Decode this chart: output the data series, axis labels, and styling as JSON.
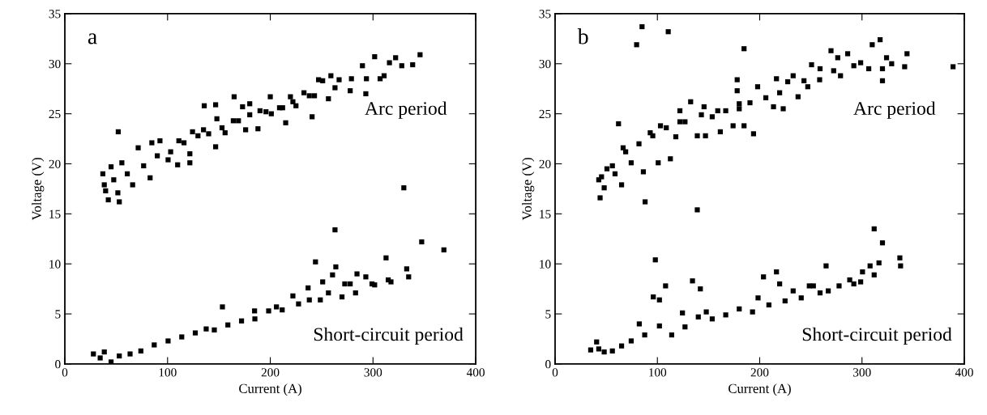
{
  "chart_data": [
    {
      "type": "scatter",
      "xlabel": "Current (A)",
      "ylabel": "Voltage (V)",
      "xlim": [
        0,
        400
      ],
      "ylim": [
        0,
        35
      ],
      "xticks": [
        0,
        100,
        200,
        300,
        400
      ],
      "yticks": [
        0,
        5,
        10,
        15,
        20,
        25,
        30,
        35
      ],
      "grid": false,
      "legend": false,
      "marker": "square",
      "annotations": [
        "a",
        "Arc period",
        "Short-circuit period"
      ],
      "series": [
        {
          "color": "#000000",
          "x": [
            37,
            39.7,
            42.3,
            53,
            52,
            45,
            55.5,
            66,
            71.4,
            83,
            84.7,
            92.6,
            100.5,
            109.8,
            111,
            121.7,
            121.7,
            124.3,
            135,
            135.7,
            146.8,
            146.8,
            148,
            156,
            164.8,
            169,
            173,
            176,
            180,
            188,
            190,
            200,
            201,
            212,
            215,
            219.6,
            225,
            232.8,
            240.7,
            243,
            247,
            256.6,
            259,
            263,
            267,
            277.8,
            279,
            289.7,
            293,
            293.6,
            301.6,
            306.9,
            310.8,
            316,
            322,
            328,
            338.6,
            345.8,
            38.4,
            47.6,
            60.8,
            76.7,
            90,
            103,
            116,
            129.6,
            140,
            153,
            164,
            180,
            195.8,
            209,
            222,
            238,
            251,
            51.6
          ],
          "values": [
            19.0,
            17.3,
            16.4,
            16.2,
            23.2,
            19.7,
            20.1,
            17.9,
            21.6,
            18.6,
            22.1,
            22.3,
            20.4,
            19.9,
            22.3,
            20.1,
            21.0,
            23.2,
            23.4,
            25.8,
            25.9,
            21.7,
            24.5,
            23.1,
            26.7,
            24.3,
            25.7,
            23.4,
            26.0,
            23.5,
            25.3,
            26.7,
            25.0,
            25.6,
            24.1,
            26.7,
            25.8,
            27.1,
            24.7,
            26.8,
            28.4,
            26.5,
            28.8,
            27.6,
            28.4,
            27.3,
            28.5,
            29.8,
            27.0,
            28.5,
            30.7,
            28.5,
            28.8,
            30.1,
            30.6,
            29.8,
            29.9,
            30.9,
            17.9,
            18.4,
            19.0,
            19.8,
            20.8,
            21.2,
            22.1,
            22.8,
            23.0,
            23.6,
            24.3,
            24.9,
            25.2,
            25.6,
            26.2,
            26.8,
            28.3,
            17.1
          ]
        },
        {
          "color": "#000000",
          "x": [
            27.8,
            34.4,
            38.4,
            45,
            53,
            63.5,
            74,
            87,
            100.5,
            113.8,
            127,
            137.6,
            145.5,
            153.4,
            158.7,
            172,
            184.7,
            185,
            198.4,
            206,
            211.6,
            222,
            227.5,
            236.8,
            238,
            244,
            248.7,
            251,
            256.6,
            260.6,
            263,
            263.8,
            269.8,
            272.5,
            277.8,
            283,
            284.4,
            293,
            299,
            301.6,
            312.7,
            314.8,
            317.5,
            330,
            332.8,
            334.7,
            347.4,
            369
          ],
          "values": [
            1.0,
            0.6,
            1.2,
            0.2,
            0.8,
            1.0,
            1.3,
            1.9,
            2.3,
            2.7,
            3.1,
            3.5,
            3.4,
            5.7,
            3.9,
            4.3,
            5.3,
            4.5,
            5.3,
            5.7,
            5.4,
            6.8,
            6.0,
            7.6,
            6.4,
            10.2,
            6.4,
            8.2,
            7.1,
            8.9,
            13.4,
            9.7,
            6.7,
            8.0,
            8.0,
            7.1,
            9.0,
            8.7,
            8.0,
            7.9,
            10.6,
            8.4,
            8.2,
            17.6,
            9.5,
            8.7,
            12.2,
            11.4
          ]
        }
      ]
    },
    {
      "type": "scatter",
      "xlabel": "Current (A)",
      "ylabel": "Voltage (V)",
      "xlim": [
        0,
        400
      ],
      "ylim": [
        0,
        35
      ],
      "xticks": [
        0,
        100,
        200,
        300,
        400
      ],
      "yticks": [
        0,
        5,
        10,
        15,
        20,
        25,
        30,
        35
      ],
      "grid": false,
      "legend": false,
      "marker": "square",
      "annotations": [
        "b",
        "Arc period",
        "Short-circuit period"
      ],
      "series": [
        {
          "color": "#000000",
          "x": [
            42.7,
            44,
            48,
            50.7,
            62,
            58.6,
            65,
            66.5,
            74.4,
            79.7,
            85,
            88,
            86.3,
            93,
            100.8,
            103,
            110.6,
            112.7,
            118,
            122,
            127,
            132.5,
            139,
            139,
            145.6,
            147,
            153.6,
            161.5,
            166.8,
            174,
            178,
            178,
            180,
            184.7,
            184.7,
            190.5,
            194,
            198,
            206,
            213.5,
            216.4,
            219.5,
            223,
            227.4,
            232.7,
            237.5,
            243.3,
            247,
            250.7,
            258.6,
            259,
            269.7,
            272.3,
            276.3,
            279,
            286,
            292,
            298.7,
            306.6,
            310,
            317.7,
            320,
            320,
            324,
            329,
            341.7,
            344,
            389,
            45.4,
            56,
            69,
            82,
            95.5,
            108.7,
            122,
            143,
            159,
            180
          ],
          "values": [
            18.4,
            16.6,
            17.6,
            19.5,
            24.0,
            19.0,
            17.9,
            21.6,
            20.1,
            31.9,
            33.7,
            16.2,
            19.2,
            23.1,
            20.1,
            23.8,
            33.2,
            20.5,
            22.7,
            25.3,
            24.2,
            26.2,
            15.4,
            22.8,
            25.7,
            22.8,
            24.7,
            23.2,
            25.3,
            23.8,
            28.4,
            27.3,
            25.5,
            31.5,
            23.8,
            26.1,
            23.0,
            27.7,
            26.6,
            25.7,
            28.5,
            27.1,
            25.5,
            28.2,
            28.8,
            26.7,
            28.3,
            27.7,
            29.9,
            28.4,
            29.5,
            31.3,
            29.3,
            30.6,
            28.8,
            31.0,
            29.8,
            30.1,
            29.5,
            31.9,
            32.4,
            28.3,
            29.5,
            30.6,
            30.0,
            29.7,
            31.0,
            29.7,
            18.7,
            19.8,
            21.2,
            22.0,
            22.8,
            23.6,
            24.2,
            24.9,
            25.3,
            26.0
          ]
        },
        {
          "color": "#000000",
          "x": [
            34.8,
            40.6,
            42.7,
            48,
            56,
            65,
            74.4,
            82.3,
            87.6,
            96,
            98,
            102,
            102,
            108,
            114,
            124.5,
            127,
            134.3,
            140,
            142,
            147.8,
            153.6,
            166.8,
            180,
            193,
            198.4,
            203.7,
            209,
            216.4,
            219.5,
            224.8,
            232.7,
            240.6,
            248.5,
            252.5,
            259,
            264.9,
            267,
            277.6,
            288,
            292,
            298.7,
            300.5,
            307.9,
            311.9,
            311.9,
            316.6,
            320,
            337,
            337.7
          ],
          "values": [
            1.4,
            2.2,
            1.5,
            1.2,
            1.3,
            1.8,
            2.3,
            4.0,
            2.9,
            6.7,
            10.4,
            6.4,
            3.8,
            7.8,
            2.9,
            5.1,
            3.7,
            8.3,
            4.7,
            7.5,
            5.2,
            4.5,
            4.9,
            5.5,
            5.2,
            6.6,
            8.7,
            5.9,
            9.2,
            8.0,
            6.3,
            7.3,
            6.6,
            7.8,
            7.8,
            7.1,
            9.8,
            7.3,
            7.8,
            8.4,
            8.0,
            8.2,
            9.2,
            9.8,
            13.5,
            8.9,
            10.1,
            12.1,
            10.6,
            9.8
          ]
        }
      ]
    }
  ]
}
